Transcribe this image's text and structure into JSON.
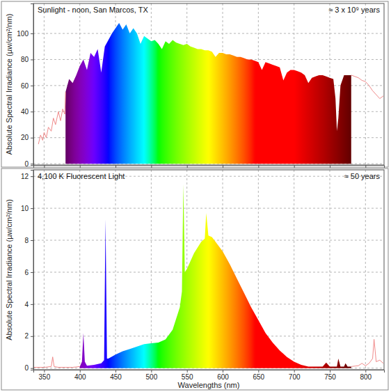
{
  "chart_data": [
    {
      "type": "area",
      "annotations": [
        "Sunlight - noon, San Marcos, TX",
        "≈ 3 x 10⁹ years"
      ],
      "y_label": "Absolute Spectral Irradiance (µw/cm²/nm)",
      "x": [
        342,
        345,
        348,
        350,
        353,
        356,
        360,
        363,
        366,
        370,
        373,
        376,
        379,
        380,
        385,
        390,
        395,
        400,
        405,
        410,
        415,
        420,
        425,
        430,
        435,
        440,
        445,
        450,
        455,
        460,
        465,
        470,
        475,
        480,
        485,
        490,
        495,
        500,
        505,
        510,
        515,
        520,
        525,
        530,
        535,
        540,
        545,
        550,
        555,
        560,
        565,
        570,
        575,
        580,
        585,
        590,
        595,
        600,
        605,
        610,
        615,
        620,
        625,
        630,
        635,
        640,
        645,
        650,
        655,
        660,
        665,
        670,
        675,
        680,
        685,
        690,
        695,
        700,
        705,
        710,
        715,
        720,
        725,
        730,
        735,
        740,
        745,
        750,
        755,
        758,
        760,
        762,
        765,
        770,
        775,
        780,
        785,
        790,
        795,
        800,
        805,
        810,
        815,
        820,
        825
      ],
      "series": [
        {
          "type": "area",
          "color": "spectrum",
          "values": [
            null,
            null,
            null,
            null,
            null,
            null,
            null,
            null,
            null,
            null,
            null,
            null,
            null,
            55,
            65,
            62,
            68,
            75,
            80,
            72,
            85,
            82,
            88,
            70,
            90,
            95,
            100,
            104,
            108,
            103,
            107,
            100,
            104,
            100,
            92,
            98,
            96,
            94,
            95,
            92,
            88,
            94,
            92,
            95,
            93,
            92,
            91,
            92,
            90,
            89,
            88,
            88,
            87,
            87,
            86,
            82,
            85,
            85,
            84,
            84,
            83,
            82,
            82,
            81,
            80,
            80,
            79,
            78,
            72,
            78,
            77,
            76,
            75,
            74,
            64,
            70,
            72,
            72,
            71,
            70,
            68,
            62,
            66,
            67,
            68,
            68,
            67,
            66,
            65,
            50,
            25,
            35,
            60,
            68,
            68,
            68,
            null,
            null,
            null,
            null,
            null,
            null,
            null,
            null,
            null
          ]
        },
        {
          "type": "line",
          "color": "#f08a8a",
          "values": [
            15,
            22,
            18,
            24,
            20,
            28,
            25,
            35,
            30,
            40,
            33,
            42,
            38,
            55,
            null,
            null,
            null,
            null,
            null,
            null,
            null,
            null,
            null,
            null,
            null,
            null,
            null,
            null,
            null,
            null,
            null,
            null,
            null,
            null,
            null,
            null,
            null,
            null,
            null,
            null,
            null,
            null,
            null,
            null,
            null,
            null,
            null,
            null,
            null,
            null,
            null,
            null,
            null,
            null,
            null,
            null,
            null,
            null,
            null,
            null,
            null,
            null,
            null,
            null,
            null,
            null,
            null,
            null,
            null,
            null,
            null,
            null,
            null,
            null,
            null,
            null,
            null,
            null,
            null,
            null,
            null,
            null,
            null,
            null,
            null,
            null,
            null,
            null,
            null,
            null,
            null,
            null,
            null,
            null,
            null,
            68,
            67,
            66,
            64,
            63,
            60,
            56,
            53,
            50,
            52
          ]
        }
      ],
      "xlim": [
        335,
        826
      ],
      "xticks": [
        350,
        400,
        450,
        500,
        550,
        600,
        650,
        700,
        750,
        800
      ],
      "ylim": [
        -1,
        123
      ],
      "yticks": [
        0,
        20,
        40,
        60,
        80,
        100
      ],
      "grid": true,
      "tick_labels": "y"
    },
    {
      "type": "area",
      "annotations": [
        "4,100 K Fluorescent Light",
        "≈ 50 years"
      ],
      "y_label": "Absolute Spectral Irradiance (µw/cm²/nm)",
      "x_label": "Wavelengths (nm)",
      "x": [
        335,
        350,
        360,
        362,
        364,
        370,
        380,
        390,
        400,
        403,
        405,
        407,
        410,
        420,
        430,
        434,
        436,
        438,
        440,
        450,
        460,
        470,
        480,
        490,
        500,
        510,
        520,
        530,
        540,
        543,
        545,
        547,
        550,
        560,
        570,
        575,
        577,
        580,
        585,
        590,
        600,
        610,
        620,
        630,
        640,
        650,
        660,
        670,
        680,
        690,
        700,
        710,
        720,
        730,
        740,
        745,
        750,
        760,
        762,
        765,
        770,
        772,
        775,
        780,
        790,
        795,
        800,
        805,
        810,
        812,
        815,
        820,
        825
      ],
      "series": [
        {
          "type": "area",
          "color": "spectrum",
          "values": [
            null,
            null,
            null,
            null,
            null,
            null,
            null,
            null,
            0.1,
            0.4,
            2.2,
            0.4,
            0.15,
            0.2,
            0.3,
            0.5,
            9.3,
            0.6,
            0.6,
            0.85,
            1.05,
            1.2,
            1.35,
            1.5,
            1.55,
            1.6,
            1.8,
            2.4,
            3.8,
            4.8,
            11.5,
            6.0,
            6.2,
            7.2,
            7.9,
            8.1,
            9.7,
            8.3,
            8.2,
            7.9,
            7.3,
            6.5,
            5.6,
            4.7,
            3.8,
            3.0,
            2.2,
            1.6,
            1.1,
            0.7,
            0.4,
            0.2,
            0.1,
            0.1,
            0.1,
            0.35,
            0.1,
            0.1,
            0.6,
            0.1,
            0.1,
            0.3,
            0.1,
            0.1,
            null,
            null,
            null,
            null,
            null,
            null,
            null,
            null,
            null
          ]
        },
        {
          "type": "line",
          "color": "#f08a8a",
          "values": [
            0.05,
            0.05,
            0.1,
            0.7,
            0.1,
            0.05,
            0.05,
            0.05,
            0.1,
            null,
            null,
            null,
            null,
            null,
            null,
            null,
            null,
            null,
            null,
            null,
            null,
            null,
            null,
            null,
            null,
            null,
            null,
            null,
            null,
            null,
            null,
            null,
            null,
            null,
            null,
            null,
            null,
            null,
            null,
            null,
            null,
            null,
            null,
            null,
            null,
            null,
            null,
            null,
            null,
            null,
            null,
            null,
            null,
            null,
            null,
            null,
            null,
            null,
            null,
            null,
            null,
            null,
            null,
            0.1,
            0.15,
            0.3,
            0.15,
            0.3,
            0.6,
            1.8,
            0.4,
            0.5,
            0.3
          ]
        }
      ],
      "xlim": [
        335,
        826
      ],
      "xticks": [
        350,
        400,
        450,
        500,
        550,
        600,
        650,
        700,
        750,
        800
      ],
      "ylim": [
        -0.1,
        12.4
      ],
      "yticks": [
        0,
        2,
        4,
        6,
        8,
        10,
        12
      ],
      "grid": true
    }
  ]
}
